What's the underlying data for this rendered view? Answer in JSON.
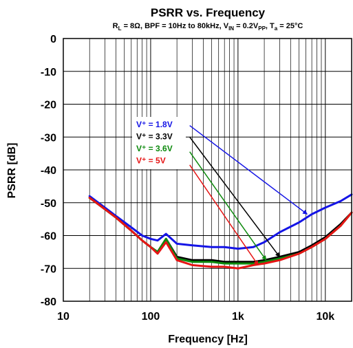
{
  "chart_data": {
    "type": "line",
    "title": "PSRR vs. Frequency",
    "subtitle": {
      "rl_label": "R",
      "rl_sub": "L",
      "rl_value": " = 8Ω, BPF = 10Hz to 80kHz, V",
      "vin_sub": "IN",
      "vin_value": " = 0.2V",
      "vpp_sub": "PP",
      "ta_label": ", T",
      "ta_sub": "a",
      "ta_value": " = 25°C"
    },
    "xlabel": "Frequency [Hz]",
    "ylabel": "PSRR [dB]",
    "x_scale": "log",
    "xlim": [
      10,
      20000
    ],
    "ylim": [
      -80,
      0
    ],
    "x_ticks": [
      {
        "value": 10,
        "label": "10"
      },
      {
        "value": 100,
        "label": "100"
      },
      {
        "value": 1000,
        "label": "1k"
      },
      {
        "value": 10000,
        "label": "10k"
      }
    ],
    "y_ticks": [
      {
        "value": 0,
        "label": "0"
      },
      {
        "value": -10,
        "label": "-10"
      },
      {
        "value": -20,
        "label": "-20"
      },
      {
        "value": -30,
        "label": "-30"
      },
      {
        "value": -40,
        "label": "-40"
      },
      {
        "value": -50,
        "label": "-50"
      },
      {
        "value": -60,
        "label": "-60"
      },
      {
        "value": -70,
        "label": "-70"
      },
      {
        "value": -80,
        "label": "-80"
      }
    ],
    "grid": true,
    "series": [
      {
        "name": "V⁺ = 1.8V",
        "color": "#1414e6",
        "x": [
          20,
          30,
          40,
          60,
          80,
          100,
          120,
          150,
          200,
          300,
          500,
          700,
          1000,
          1500,
          2000,
          3000,
          5000,
          7000,
          10000,
          15000,
          20000
        ],
        "y": [
          -48,
          -51.5,
          -54,
          -57.5,
          -60,
          -61,
          -61.5,
          -59.5,
          -62.5,
          -63,
          -63.5,
          -63.5,
          -64,
          -63.5,
          -62,
          -59,
          -56,
          -53.5,
          -51.5,
          -49.5,
          -47.5
        ]
      },
      {
        "name": "V⁺ = 3.3V",
        "color": "#000000",
        "x": [
          20,
          30,
          40,
          60,
          80,
          100,
          120,
          150,
          200,
          300,
          500,
          700,
          1000,
          1500,
          2000,
          3000,
          5000,
          7000,
          10000,
          15000,
          20000
        ],
        "y": [
          -48.5,
          -52,
          -54.5,
          -58.5,
          -61.5,
          -63.5,
          -65,
          -61,
          -66.5,
          -67.5,
          -67.5,
          -68,
          -68,
          -68,
          -67.5,
          -66.5,
          -65,
          -63,
          -60.5,
          -56.5,
          -53
        ]
      },
      {
        "name": "V⁺ = 3.6V",
        "color": "#0d8a0d",
        "x": [
          20,
          30,
          40,
          60,
          80,
          100,
          120,
          150,
          200,
          300,
          500,
          700,
          1000,
          1500,
          2000,
          3000,
          5000,
          7000,
          10000,
          15000,
          20000
        ],
        "y": [
          -48.5,
          -52,
          -54.5,
          -58.5,
          -61.5,
          -63.5,
          -65,
          -61,
          -67,
          -68,
          -68,
          -68.5,
          -68.5,
          -68.5,
          -68,
          -67,
          -65.5,
          -63.5,
          -61,
          -57,
          -53
        ]
      },
      {
        "name": "V⁺ = 5V",
        "color": "#e61414",
        "x": [
          20,
          30,
          40,
          60,
          80,
          100,
          120,
          150,
          200,
          300,
          500,
          700,
          1000,
          1500,
          2000,
          3000,
          5000,
          7000,
          10000,
          15000,
          20000
        ],
        "y": [
          -48.5,
          -52,
          -54.5,
          -58.5,
          -61.5,
          -63.5,
          -65.5,
          -62,
          -67.5,
          -69,
          -69.5,
          -69.5,
          -70,
          -69,
          -68.5,
          -67.5,
          -65.5,
          -63.5,
          -61,
          -57,
          -53
        ]
      }
    ],
    "legend": {
      "placement": "center-left",
      "entries": [
        "V⁺ = 1.8V",
        "V⁺ = 3.3V",
        "V⁺ = 3.6V",
        "V⁺ = 5V"
      ]
    },
    "annotations": [
      {
        "series": "V⁺ = 1.8V",
        "from": {
          "x": 280,
          "y": -26.5
        },
        "to": {
          "x": 6200,
          "y": -53.5
        }
      },
      {
        "series": "V⁺ = 3.3V",
        "from": {
          "x": 280,
          "y": -30
        },
        "to": {
          "x": 3000,
          "y": -66.5
        }
      },
      {
        "series": "V⁺ = 3.6V",
        "from": {
          "x": 280,
          "y": -34.5
        },
        "to": {
          "x": 2100,
          "y": -67.5
        }
      },
      {
        "series": "V⁺ = 5V",
        "from": {
          "x": 280,
          "y": -38.5
        },
        "to": {
          "x": 1700,
          "y": -69
        }
      }
    ]
  }
}
